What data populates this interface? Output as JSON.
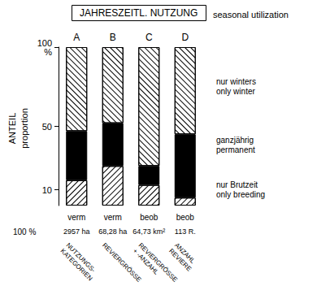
{
  "chart_data": {
    "type": "bar",
    "stacked": true,
    "title": "JAHRESZEITL. NUTZUNG",
    "subtitle": "seasonal utilization",
    "ylabel": "ANTEIL\nproportion",
    "categories": [
      "A",
      "B",
      "C",
      "D"
    ],
    "series": [
      {
        "name": "nur Brutzeit\nonly breeding",
        "color": "#ffffff",
        "values": [
          16,
          25,
          13,
          5
        ]
      },
      {
        "name": "ganzjährig\npermanent",
        "color": "#000000",
        "values": [
          31,
          27,
          12,
          40
        ]
      },
      {
        "name": "nur winters\nonly winter",
        "color": "#ffffff",
        "values": [
          53,
          48,
          75,
          55
        ]
      }
    ],
    "ylim": [
      0,
      100
    ],
    "yticks": [
      10,
      50,
      {
        "value": 100,
        "label": "100\n%"
      }
    ],
    "grid": false,
    "legend": "right",
    "annotations": {
      "method": [
        "verm",
        "verm",
        "beob",
        "beob"
      ],
      "base_label": "100 %",
      "base": [
        "2957 ha",
        "68,28 ha",
        "64,73 km²",
        "113 R."
      ],
      "measure": [
        "NUTZUNGS-\nKATEGORIEN",
        "REVIERGRÖSSE",
        "REVIERGRÖSSE\n+ -ANZAHL",
        "ANZAHL\nREVIERE"
      ]
    }
  }
}
